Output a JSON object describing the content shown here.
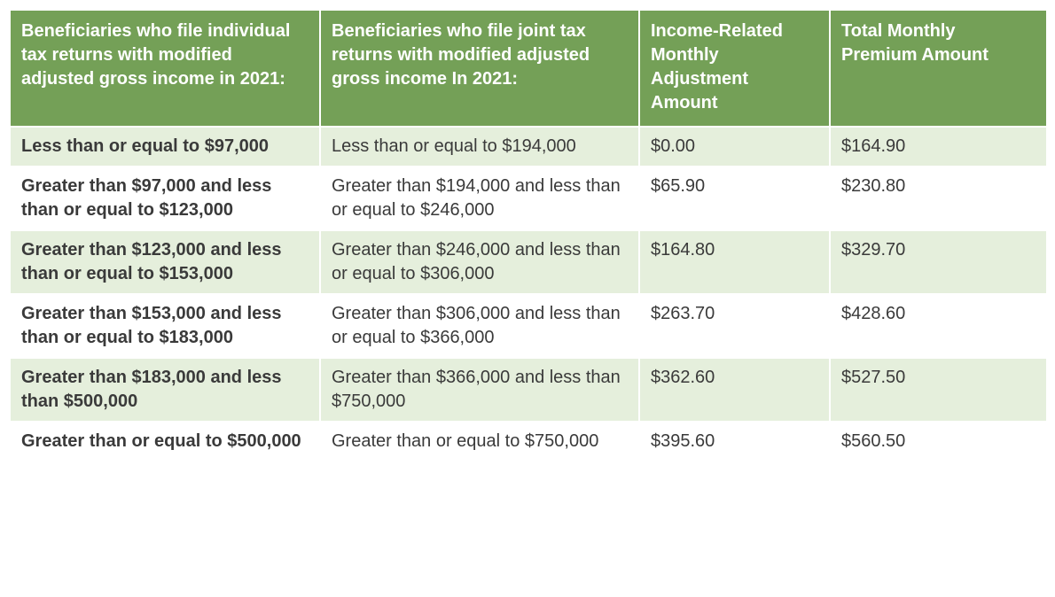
{
  "table": {
    "header_bg": "#74a057",
    "header_fg": "#ffffff",
    "row_alt_bg": "#e5efdc",
    "row_bg": "#ffffff",
    "cell_fg": "#3a3a3a",
    "columns": [
      "Beneficiaries who file individual tax returns with modified adjusted gross income in 2021:",
      "Beneficiaries who file joint tax returns with modified adjusted gross income In 2021:",
      "Income-Related Monthly Adjustment Amount",
      "Total Monthly Premium Amount"
    ],
    "rows": [
      {
        "individual": "Less than or equal to $97,000",
        "joint": "Less than or equal to $194,000",
        "adjustment": "$0.00",
        "total": "$164.90",
        "clip": false
      },
      {
        "individual": "Greater than $97,000 and less than or equal to $123,000",
        "joint": "Greater than $194,000 and less than or equal to $246,000",
        "adjustment": "$65.90",
        "total": "$230.80",
        "clip": true
      },
      {
        "individual": "Greater than $123,000 and less than or equal to $153,000",
        "joint": "Greater than $246,000 and less than or equal to $306,000",
        "adjustment": "$164.80",
        "total": "$329.70",
        "clip": true
      },
      {
        "individual": "Greater than $153,000 and less than or equal to $183,000",
        "joint": "Greater than $306,000 and less than or equal to $366,000",
        "adjustment": "$263.70",
        "total": "$428.60",
        "clip": true
      },
      {
        "individual": "Greater than $183,000 and less than $500,000",
        "joint": "Greater than $366,000 and less than $750,000",
        "adjustment": "$362.60",
        "total": "$527.50",
        "clip": false
      },
      {
        "individual": "Greater than or equal to $500,000",
        "joint": "Greater than or equal to $750,000",
        "adjustment": "$395.60",
        "total": "$560.50",
        "clip": false
      }
    ]
  }
}
